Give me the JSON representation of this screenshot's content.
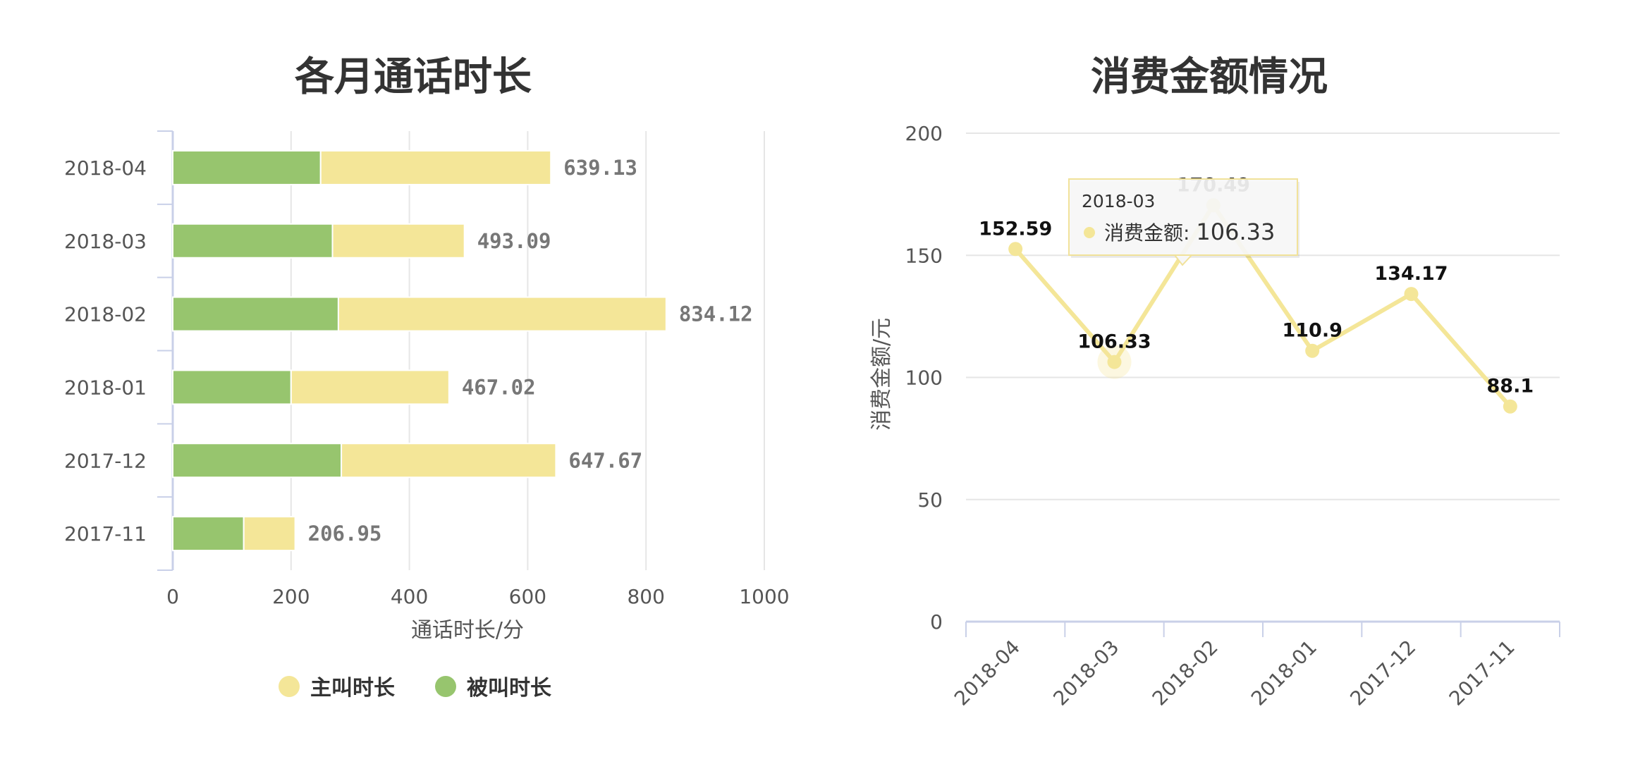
{
  "chart_data": [
    {
      "type": "bar",
      "orientation": "horizontal",
      "stacked": true,
      "title": "各月通话时长",
      "categories": [
        "2018-04",
        "2018-03",
        "2018-02",
        "2018-01",
        "2017-12",
        "2017-11"
      ],
      "series": [
        {
          "name": "被叫时长",
          "color": "#97c56e",
          "values": [
            250,
            270,
            280,
            200,
            285,
            120
          ]
        },
        {
          "name": "主叫时长",
          "color": "#f4e698",
          "values": [
            389.13,
            223.09,
            554.12,
            267.02,
            362.67,
            86.95
          ]
        }
      ],
      "total_labels": [
        "639.13",
        "493.09",
        "834.12",
        "467.02",
        "647.67",
        "206.95"
      ],
      "totals": [
        639.13,
        493.09,
        834.12,
        467.02,
        647.67,
        206.95
      ],
      "xlabel": "通话时长/分",
      "ylabel": "",
      "xlim": [
        0,
        1000
      ],
      "xticks": [
        "0",
        "200",
        "400",
        "600",
        "800",
        "1000"
      ],
      "legend": {
        "position": "bottom",
        "items": [
          "主叫时长",
          "被叫时长"
        ]
      },
      "grid": true
    },
    {
      "type": "line",
      "title": "消费金额情况",
      "categories": [
        "2018-04",
        "2018-03",
        "2018-02",
        "2018-01",
        "2017-12",
        "2017-11"
      ],
      "series": [
        {
          "name": "消费金额",
          "color": "#f4e698",
          "values": [
            152.59,
            106.33,
            170.49,
            110.9,
            134.17,
            88.1
          ]
        }
      ],
      "point_labels": [
        "152.59",
        "106.33",
        "170.49",
        "110.9",
        "134.17",
        "88.1"
      ],
      "ylabel": "消费金额/元",
      "xlabel": "",
      "ylim": [
        0,
        200
      ],
      "yticks": [
        "0",
        "50",
        "100",
        "150",
        "200"
      ],
      "grid": true,
      "tooltip": {
        "category": "2018-03",
        "series_name": "消费金额",
        "value": "106.33"
      }
    }
  ]
}
